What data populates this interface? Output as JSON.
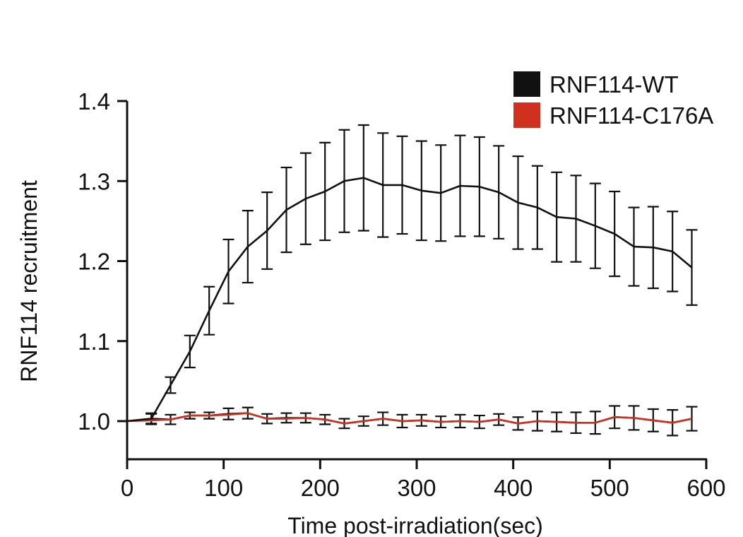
{
  "chart_data": {
    "type": "line",
    "title": "",
    "xlabel": "Time post-irradiation(sec)",
    "ylabel": "RNF114 recruitment",
    "xlim": [
      0,
      600
    ],
    "ylim": [
      0.95,
      1.4
    ],
    "xticks": [
      0,
      100,
      200,
      300,
      400,
      500,
      600
    ],
    "xtick_labels": [
      "0",
      "100",
      "200",
      "300",
      "400",
      "500",
      "600"
    ],
    "yticks": [
      1.0,
      1.1,
      1.2,
      1.3,
      1.4
    ],
    "ytick_labels": [
      "1.0",
      "1.1",
      "1.2",
      "1.3",
      "1.4"
    ],
    "grid": false,
    "legend_position": "top-right",
    "x": [
      0,
      25,
      45,
      65,
      85,
      105,
      125,
      145,
      165,
      185,
      205,
      225,
      245,
      265,
      285,
      305,
      325,
      345,
      365,
      385,
      405,
      425,
      445,
      465,
      485,
      505,
      525,
      545,
      565,
      585
    ],
    "series": [
      {
        "name": "RNF114-WT",
        "color": "#111111",
        "values": [
          1.0,
          1.003,
          1.045,
          1.087,
          1.138,
          1.187,
          1.218,
          1.238,
          1.264,
          1.278,
          1.287,
          1.3,
          1.304,
          1.295,
          1.295,
          1.288,
          1.285,
          1.294,
          1.293,
          1.286,
          1.273,
          1.267,
          1.255,
          1.253,
          1.244,
          1.234,
          1.218,
          1.217,
          1.212,
          1.192
        ],
        "errors": [
          0.0,
          0.006,
          0.01,
          0.02,
          0.03,
          0.04,
          0.045,
          0.048,
          0.053,
          0.057,
          0.061,
          0.064,
          0.066,
          0.065,
          0.061,
          0.062,
          0.06,
          0.063,
          0.062,
          0.058,
          0.058,
          0.052,
          0.056,
          0.054,
          0.053,
          0.053,
          0.049,
          0.051,
          0.05,
          0.047
        ]
      },
      {
        "name": "RNF114-C176A",
        "color": "#d0301e",
        "values": [
          1.0,
          1.001,
          1.002,
          1.007,
          1.007,
          1.008,
          1.01,
          1.003,
          1.003,
          1.004,
          1.002,
          0.997,
          1.0,
          1.003,
          1.0,
          1.001,
          0.999,
          1.0,
          0.999,
          1.002,
          0.997,
          1.0,
          0.999,
          0.998,
          0.998,
          1.005,
          1.004,
          1.001,
          0.998,
          1.003
        ]
      },
      {
        "name": "",
        "color": "#111111",
        "values": [
          1.0,
          1.003,
          1.002,
          1.007,
          1.007,
          1.009,
          1.01,
          1.003,
          1.004,
          1.004,
          1.002,
          0.997,
          1.0,
          1.003,
          1.0,
          1.001,
          0.999,
          1.0,
          0.999,
          1.002,
          0.997,
          1.0,
          0.999,
          0.998,
          0.998,
          1.005,
          1.004,
          1.001,
          0.998,
          1.003
        ],
        "errors": [
          0.0,
          0.007,
          0.006,
          0.004,
          0.004,
          0.007,
          0.007,
          0.006,
          0.006,
          0.006,
          0.006,
          0.006,
          0.006,
          0.008,
          0.008,
          0.007,
          0.007,
          0.008,
          0.008,
          0.007,
          0.008,
          0.012,
          0.012,
          0.013,
          0.014,
          0.014,
          0.015,
          0.014,
          0.016,
          0.015
        ]
      }
    ]
  }
}
